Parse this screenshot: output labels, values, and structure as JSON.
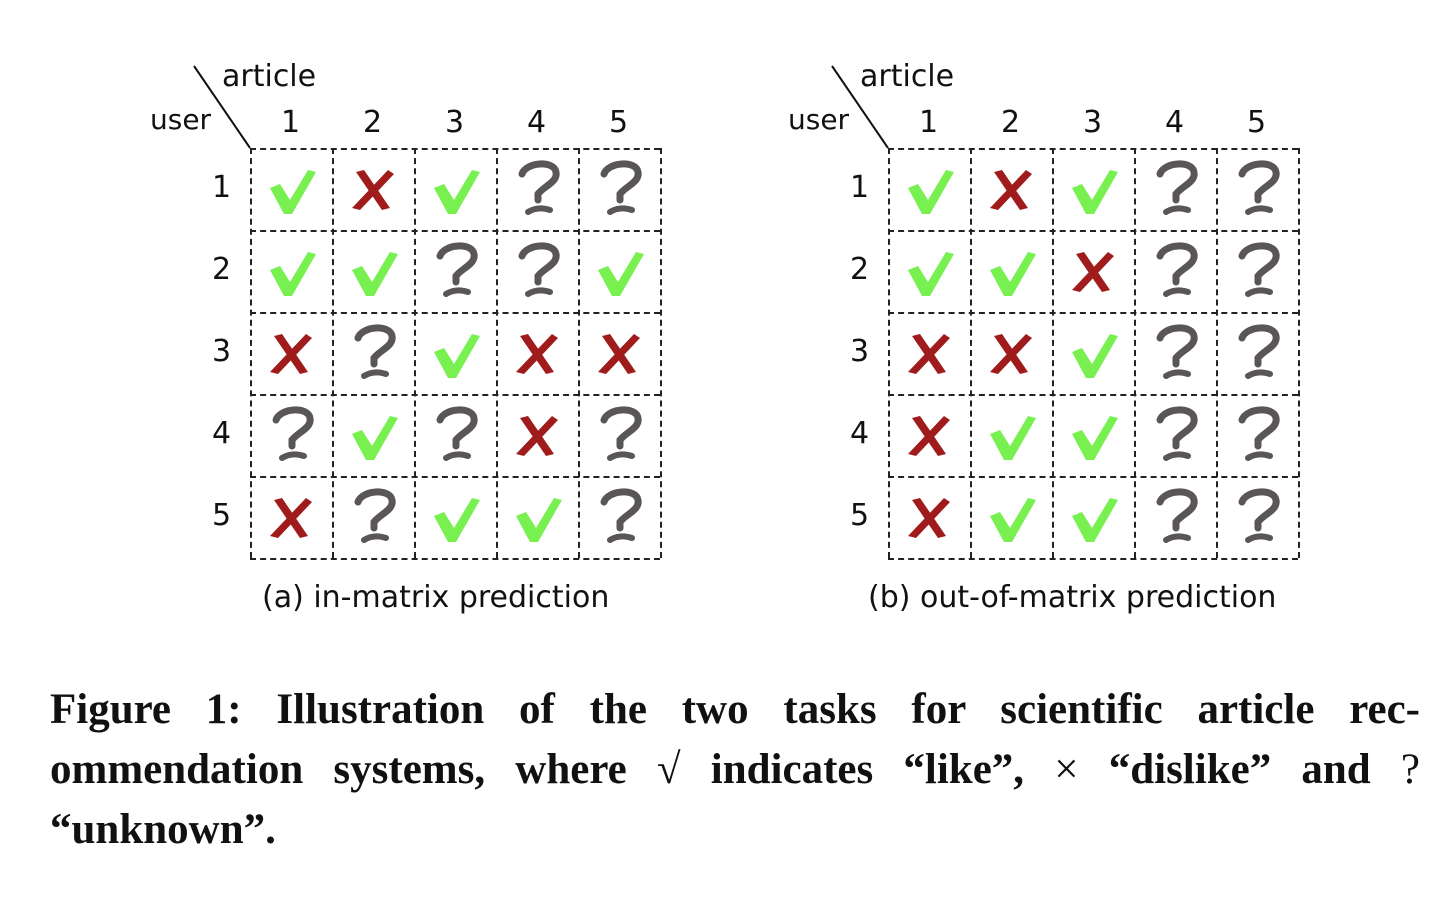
{
  "panels": [
    {
      "id": "a",
      "column_header": "article",
      "row_header": "user",
      "columns": [
        "1",
        "2",
        "3",
        "4",
        "5"
      ],
      "rows": [
        "1",
        "2",
        "3",
        "4",
        "5"
      ],
      "matrix": [
        [
          "like",
          "dislike",
          "like",
          "unknown",
          "unknown"
        ],
        [
          "like",
          "like",
          "unknown",
          "unknown",
          "like"
        ],
        [
          "dislike",
          "unknown",
          "like",
          "dislike",
          "dislike"
        ],
        [
          "unknown",
          "like",
          "unknown",
          "dislike",
          "unknown"
        ],
        [
          "dislike",
          "unknown",
          "like",
          "like",
          "unknown"
        ]
      ],
      "caption": "(a) in-matrix prediction"
    },
    {
      "id": "b",
      "column_header": "article",
      "row_header": "user",
      "columns": [
        "1",
        "2",
        "3",
        "4",
        "5"
      ],
      "rows": [
        "1",
        "2",
        "3",
        "4",
        "5"
      ],
      "matrix": [
        [
          "like",
          "dislike",
          "like",
          "unknown",
          "unknown"
        ],
        [
          "like",
          "like",
          "dislike",
          "unknown",
          "unknown"
        ],
        [
          "dislike",
          "dislike",
          "like",
          "unknown",
          "unknown"
        ],
        [
          "dislike",
          "like",
          "like",
          "unknown",
          "unknown"
        ],
        [
          "dislike",
          "like",
          "like",
          "unknown",
          "unknown"
        ]
      ],
      "caption": "(b) out-of-matrix prediction"
    }
  ],
  "colors": {
    "like": "#77f050",
    "dislike": "#a01c1c",
    "unknown": "#5a5556"
  },
  "figure_caption": {
    "part1": "Figure 1: Illustration of the two tasks for scientific article rec-ommendation systems, where ",
    "like_symbol": "√",
    "part2": " indicates “like”, ",
    "dislike_symbol": "×",
    "part3": " “dislike” and ",
    "unknown_symbol": "?",
    "part4": " “unknown”."
  }
}
